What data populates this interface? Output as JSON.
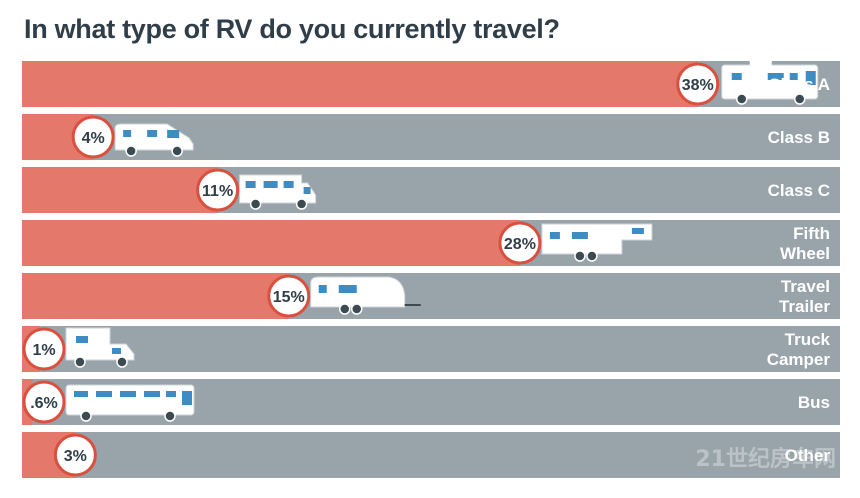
{
  "chart_data": {
    "type": "bar",
    "title": "In what type of RV do you currently travel?",
    "xlabel": "",
    "ylabel": "",
    "unit": "%",
    "xlim": [
      0,
      46
    ],
    "categories": [
      [
        "Class A"
      ],
      [
        "Class B"
      ],
      [
        "Class C"
      ],
      [
        "Fifth",
        "Wheel"
      ],
      [
        "Travel",
        "Trailer"
      ],
      [
        "Truck",
        "Camper"
      ],
      [
        "Bus"
      ],
      [
        "Other"
      ]
    ],
    "values": [
      38,
      4,
      11,
      28,
      15,
      1,
      0.6,
      3
    ],
    "value_labels": [
      "38%",
      "4%",
      "11%",
      "28%",
      "15%",
      "1%",
      ".6%",
      "3%"
    ],
    "icons": [
      "class-a-rv-icon",
      "class-b-van-icon",
      "class-c-rv-icon",
      "fifth-wheel-icon",
      "travel-trailer-icon",
      "truck-camper-icon",
      "bus-rv-icon",
      ""
    ]
  },
  "colors": {
    "bar_fill": "#e4796b",
    "track": "#98a3aa",
    "circle_border": "#d9503f",
    "circle_fill": "#ffffff",
    "label_text": "#ffffff",
    "title": "#2f3e48",
    "vehicle_body": "#ffffff",
    "vehicle_window": "#3d8cc4"
  },
  "watermark": "21世纪房车网"
}
